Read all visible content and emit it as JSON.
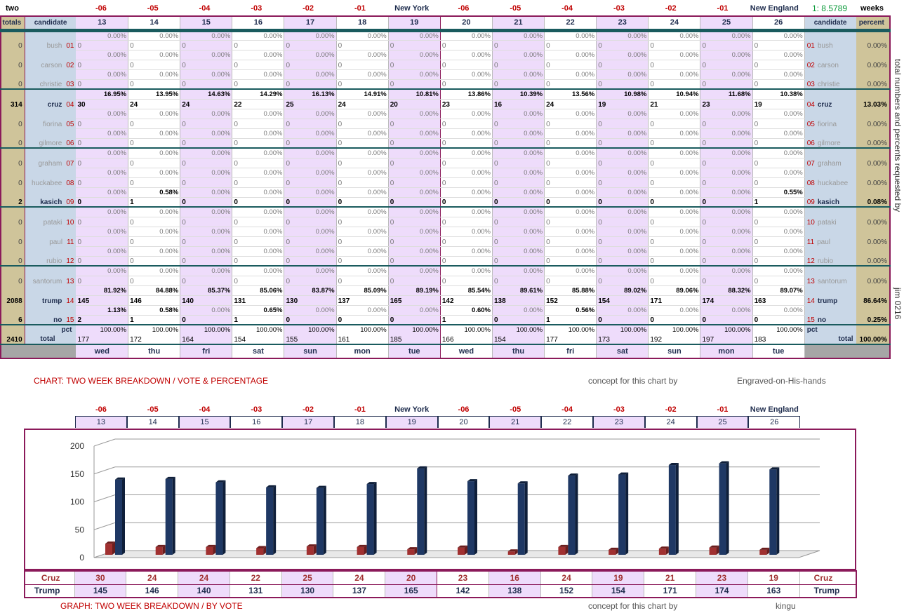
{
  "top": {
    "label_two": "two",
    "label_weeks": "weeks",
    "ratio": "1: 8.5789",
    "columns": [
      "-06",
      "-05",
      "-04",
      "-03",
      "-02",
      "-01",
      "New York",
      "-06",
      "-05",
      "-04",
      "-03",
      "-02",
      "-01",
      "New England"
    ],
    "days": [
      "13",
      "14",
      "15",
      "16",
      "17",
      "18",
      "19",
      "20",
      "21",
      "22",
      "23",
      "24",
      "25",
      "26"
    ],
    "weekdays": [
      "wed",
      "thu",
      "fri",
      "sat",
      "sun",
      "mon",
      "tue",
      "wed",
      "thu",
      "fri",
      "sat",
      "sun",
      "mon",
      "tue"
    ],
    "hdr_totals": "totals",
    "hdr_candidate": "candidate",
    "hdr_percent": "percent",
    "label_pct": "pct",
    "label_total": "total",
    "grand_total": "2410",
    "grand_pct": "100.00%",
    "side_note": "total numbers and percents requested by",
    "side_note2": "jim 0216"
  },
  "candidates": [
    {
      "name": "bush",
      "num": "01",
      "total": "0",
      "pct": "0.00%",
      "counts": [
        0,
        0,
        0,
        0,
        0,
        0,
        0,
        0,
        0,
        0,
        0,
        0,
        0,
        0
      ],
      "pcts": [
        "0.00%",
        "0.00%",
        "0.00%",
        "0.00%",
        "0.00%",
        "0.00%",
        "0.00%",
        "0.00%",
        "0.00%",
        "0.00%",
        "0.00%",
        "0.00%",
        "0.00%",
        "0.00%"
      ],
      "bold": false
    },
    {
      "name": "carson",
      "num": "02",
      "total": "0",
      "pct": "0.00%",
      "counts": [
        0,
        0,
        0,
        0,
        0,
        0,
        0,
        0,
        0,
        0,
        0,
        0,
        0,
        0
      ],
      "pcts": [
        "0.00%",
        "0.00%",
        "0.00%",
        "0.00%",
        "0.00%",
        "0.00%",
        "0.00%",
        "0.00%",
        "0.00%",
        "0.00%",
        "0.00%",
        "0.00%",
        "0.00%",
        "0.00%"
      ],
      "bold": false
    },
    {
      "name": "christie",
      "num": "03",
      "total": "0",
      "pct": "0.00%",
      "counts": [
        0,
        0,
        0,
        0,
        0,
        0,
        0,
        0,
        0,
        0,
        0,
        0,
        0,
        0
      ],
      "pcts": [
        "0.00%",
        "0.00%",
        "0.00%",
        "0.00%",
        "0.00%",
        "0.00%",
        "0.00%",
        "0.00%",
        "0.00%",
        "0.00%",
        "0.00%",
        "0.00%",
        "0.00%",
        "0.00%"
      ],
      "bold": false
    },
    {
      "name": "cruz",
      "num": "04",
      "total": "314",
      "pct": "13.03%",
      "counts": [
        30,
        24,
        24,
        22,
        25,
        24,
        20,
        23,
        16,
        24,
        19,
        21,
        23,
        19
      ],
      "pcts": [
        "16.95%",
        "13.95%",
        "14.63%",
        "14.29%",
        "16.13%",
        "14.91%",
        "10.81%",
        "13.86%",
        "10.39%",
        "13.56%",
        "10.98%",
        "10.94%",
        "11.68%",
        "10.38%"
      ],
      "bold": true
    },
    {
      "name": "fiorina",
      "num": "05",
      "total": "0",
      "pct": "0.00%",
      "counts": [
        0,
        0,
        0,
        0,
        0,
        0,
        0,
        0,
        0,
        0,
        0,
        0,
        0,
        0
      ],
      "pcts": [
        "0.00%",
        "0.00%",
        "0.00%",
        "0.00%",
        "0.00%",
        "0.00%",
        "0.00%",
        "0.00%",
        "0.00%",
        "0.00%",
        "0.00%",
        "0.00%",
        "0.00%",
        "0.00%"
      ],
      "bold": false
    },
    {
      "name": "gilmore",
      "num": "06",
      "total": "0",
      "pct": "0.00%",
      "counts": [
        0,
        0,
        0,
        0,
        0,
        0,
        0,
        0,
        0,
        0,
        0,
        0,
        0,
        0
      ],
      "pcts": [
        "0.00%",
        "0.00%",
        "0.00%",
        "0.00%",
        "0.00%",
        "0.00%",
        "0.00%",
        "0.00%",
        "0.00%",
        "0.00%",
        "0.00%",
        "0.00%",
        "0.00%",
        "0.00%"
      ],
      "bold": false
    },
    {
      "name": "graham",
      "num": "07",
      "total": "0",
      "pct": "0.00%",
      "counts": [
        0,
        0,
        0,
        0,
        0,
        0,
        0,
        0,
        0,
        0,
        0,
        0,
        0,
        0
      ],
      "pcts": [
        "0.00%",
        "0.00%",
        "0.00%",
        "0.00%",
        "0.00%",
        "0.00%",
        "0.00%",
        "0.00%",
        "0.00%",
        "0.00%",
        "0.00%",
        "0.00%",
        "0.00%",
        "0.00%"
      ],
      "bold": false
    },
    {
      "name": "huckabee",
      "num": "08",
      "total": "0",
      "pct": "0.00%",
      "counts": [
        0,
        0,
        0,
        0,
        0,
        0,
        0,
        0,
        0,
        0,
        0,
        0,
        0,
        0
      ],
      "pcts": [
        "0.00%",
        "0.00%",
        "0.00%",
        "0.00%",
        "0.00%",
        "0.00%",
        "0.00%",
        "0.00%",
        "0.00%",
        "0.00%",
        "0.00%",
        "0.00%",
        "0.00%",
        "0.00%"
      ],
      "bold": false
    },
    {
      "name": "kasich",
      "num": "09",
      "total": "2",
      "pct": "0.08%",
      "counts": [
        0,
        1,
        0,
        0,
        0,
        0,
        0,
        0,
        0,
        0,
        0,
        0,
        0,
        1
      ],
      "pcts": [
        "0.00%",
        "0.58%",
        "0.00%",
        "0.00%",
        "0.00%",
        "0.00%",
        "0.00%",
        "0.00%",
        "0.00%",
        "0.00%",
        "0.00%",
        "0.00%",
        "0.00%",
        "0.55%"
      ],
      "bold": true
    },
    {
      "name": "pataki",
      "num": "10",
      "total": "0",
      "pct": "0.00%",
      "counts": [
        0,
        0,
        0,
        0,
        0,
        0,
        0,
        0,
        0,
        0,
        0,
        0,
        0,
        0
      ],
      "pcts": [
        "0.00%",
        "0.00%",
        "0.00%",
        "0.00%",
        "0.00%",
        "0.00%",
        "0.00%",
        "0.00%",
        "0.00%",
        "0.00%",
        "0.00%",
        "0.00%",
        "0.00%",
        "0.00%"
      ],
      "bold": false
    },
    {
      "name": "paul",
      "num": "11",
      "total": "0",
      "pct": "0.00%",
      "counts": [
        0,
        0,
        0,
        0,
        0,
        0,
        0,
        0,
        0,
        0,
        0,
        0,
        0,
        0
      ],
      "pcts": [
        "0.00%",
        "0.00%",
        "0.00%",
        "0.00%",
        "0.00%",
        "0.00%",
        "0.00%",
        "0.00%",
        "0.00%",
        "0.00%",
        "0.00%",
        "0.00%",
        "0.00%",
        "0.00%"
      ],
      "bold": false
    },
    {
      "name": "rubio",
      "num": "12",
      "total": "0",
      "pct": "0.00%",
      "counts": [
        0,
        0,
        0,
        0,
        0,
        0,
        0,
        0,
        0,
        0,
        0,
        0,
        0,
        0
      ],
      "pcts": [
        "0.00%",
        "0.00%",
        "0.00%",
        "0.00%",
        "0.00%",
        "0.00%",
        "0.00%",
        "0.00%",
        "0.00%",
        "0.00%",
        "0.00%",
        "0.00%",
        "0.00%",
        "0.00%"
      ],
      "bold": false
    },
    {
      "name": "santorum",
      "num": "13",
      "total": "0",
      "pct": "0.00%",
      "counts": [
        0,
        0,
        0,
        0,
        0,
        0,
        0,
        0,
        0,
        0,
        0,
        0,
        0,
        0
      ],
      "pcts": [
        "0.00%",
        "0.00%",
        "0.00%",
        "0.00%",
        "0.00%",
        "0.00%",
        "0.00%",
        "0.00%",
        "0.00%",
        "0.00%",
        "0.00%",
        "0.00%",
        "0.00%",
        "0.00%"
      ],
      "bold": false
    },
    {
      "name": "trump",
      "num": "14",
      "total": "2088",
      "pct": "86.64%",
      "counts": [
        145,
        146,
        140,
        131,
        130,
        137,
        165,
        142,
        138,
        152,
        154,
        171,
        174,
        163
      ],
      "pcts": [
        "81.92%",
        "84.88%",
        "85.37%",
        "85.06%",
        "83.87%",
        "85.09%",
        "89.19%",
        "85.54%",
        "89.61%",
        "85.88%",
        "89.02%",
        "89.06%",
        "88.32%",
        "89.07%"
      ],
      "bold": true
    },
    {
      "name": "no",
      "num": "15",
      "total": "6",
      "pct": "0.25%",
      "counts": [
        2,
        1,
        0,
        1,
        0,
        0,
        0,
        1,
        0,
        1,
        0,
        0,
        0,
        0
      ],
      "pcts": [
        "1.13%",
        "0.58%",
        "0.00%",
        "0.65%",
        "0.00%",
        "0.00%",
        "0.00%",
        "0.60%",
        "0.00%",
        "0.56%",
        "0.00%",
        "0.00%",
        "0.00%",
        "0.00%"
      ],
      "bold": true
    }
  ],
  "day_totals": {
    "counts": [
      "177",
      "172",
      "164",
      "154",
      "155",
      "161",
      "185",
      "166",
      "154",
      "177",
      "173",
      "192",
      "197",
      "183"
    ],
    "pct": "100.00%"
  },
  "caption1": {
    "title": "CHART: TWO WEEK BREAKDOWN / VOTE & PERCENTAGE",
    "concept": "concept for this chart by",
    "author": "Engraved-on-His-hands"
  },
  "caption2": {
    "title": "GRAPH: TWO WEEK BREAKDOWN / BY VOTE",
    "concept": "concept for this chart by",
    "author": "kingu"
  },
  "colors": {
    "cruz": "#a03030",
    "trump": "#1f3864",
    "frame": "#8b1a5a"
  },
  "chart_data": {
    "type": "bar",
    "categories": [
      "13",
      "14",
      "15",
      "16",
      "17",
      "18",
      "19",
      "20",
      "21",
      "22",
      "23",
      "24",
      "25",
      "26"
    ],
    "series": [
      {
        "name": "Cruz",
        "values": [
          30,
          24,
          24,
          22,
          25,
          24,
          20,
          23,
          16,
          24,
          19,
          21,
          23,
          19
        ]
      },
      {
        "name": "Trump",
        "values": [
          145,
          146,
          140,
          131,
          130,
          137,
          165,
          142,
          138,
          152,
          154,
          171,
          174,
          163
        ]
      }
    ],
    "ylim": [
      0,
      200
    ],
    "yticks": [
      "200",
      "150",
      "100",
      "50",
      "0"
    ],
    "grid": true
  }
}
